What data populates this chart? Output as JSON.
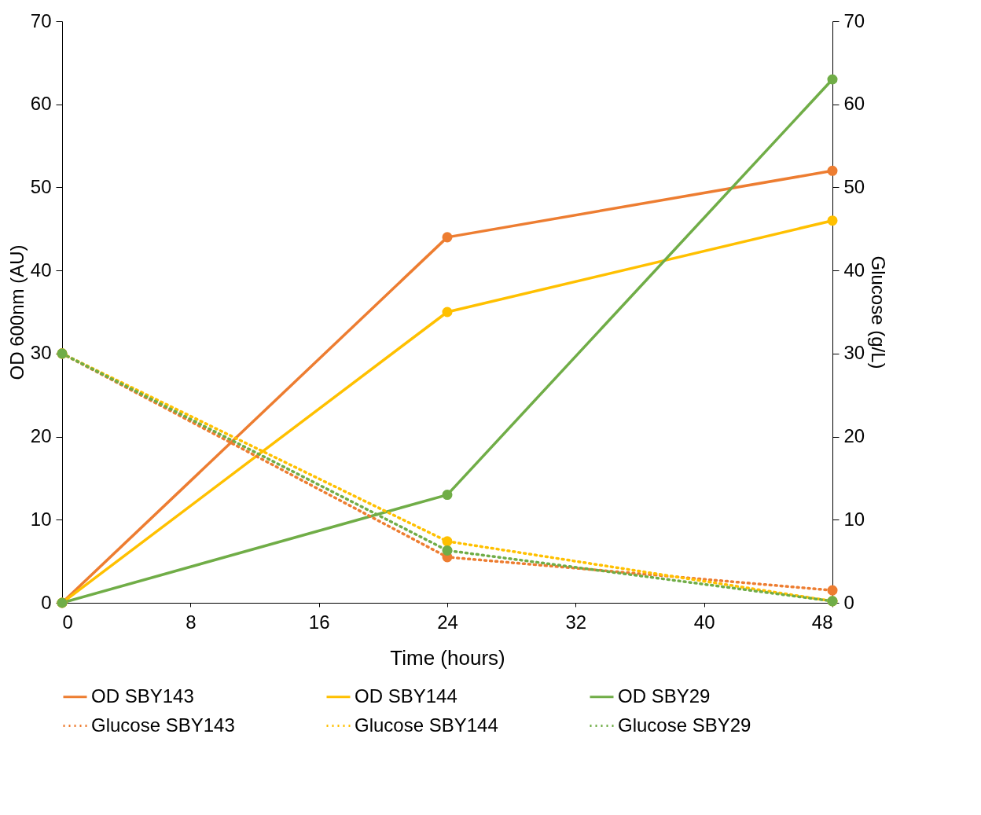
{
  "chart_data": {
    "type": "line",
    "xlabel": "Time (hours)",
    "ylabel": "OD 600nm (AU)",
    "y2label": "Glucose (g/L)",
    "x": [
      0,
      24,
      48
    ],
    "series": [
      {
        "name": "OD SBY143",
        "color": "#ed7d31",
        "values": [
          0,
          44,
          52
        ],
        "line_style": "solid"
      },
      {
        "name": "OD SBY144",
        "color": "#ffc000",
        "values": [
          0,
          35,
          46
        ],
        "line_style": "solid"
      },
      {
        "name": "OD SBY29",
        "color": "#70ad47",
        "values": [
          0,
          13,
          63
        ],
        "line_style": "solid"
      },
      {
        "name": "Glucose SBY143",
        "color": "#ed7d31",
        "values": [
          30,
          5.5,
          1.5
        ],
        "line_style": "dotted",
        "axis": "y2"
      },
      {
        "name": "Glucose SBY144",
        "color": "#ffc000",
        "values": [
          30,
          7.4,
          0.2
        ],
        "line_style": "dotted",
        "axis": "y2"
      },
      {
        "name": "Glucose SBY29",
        "color": "#70ad47",
        "values": [
          30,
          6.3,
          0.2
        ],
        "line_style": "dotted",
        "axis": "y2"
      }
    ],
    "xlim": [
      0,
      48
    ],
    "xticks": [
      0,
      8,
      16,
      24,
      32,
      40,
      48
    ],
    "ylim": [
      0,
      70
    ],
    "yticks": [
      0,
      10,
      20,
      30,
      40,
      50,
      60,
      70
    ],
    "y2lim": [
      0,
      70
    ],
    "y2ticks": [
      0,
      10,
      20,
      30,
      40,
      50,
      60,
      70
    ],
    "grid": false,
    "legend": "bottom",
    "marker": "circle"
  }
}
